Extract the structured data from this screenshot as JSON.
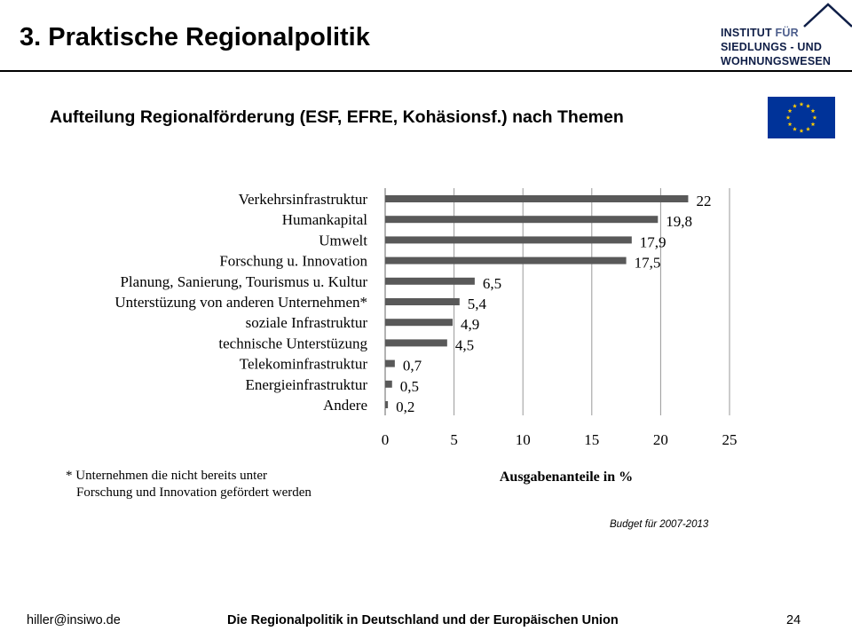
{
  "header": {
    "title": "3. Praktische Regionalpolitik",
    "logo_lines": [
      "INSTITUT",
      "FÜR",
      "SIEDLUNGS - UND",
      "WOHNUNGSWESEN"
    ]
  },
  "subtitle": "Aufteilung Regionalförderung (ESF, EFRE, Kohäsionsf.) nach Themen",
  "colors": {
    "bar": "#595959",
    "grid": "#999999",
    "logo_text": "#0f1e47",
    "flag_blue": "#003399",
    "flag_star": "#ffcc00"
  },
  "chart_data": {
    "type": "bar",
    "orientation": "horizontal",
    "categories": [
      "Verkehrsinfrastruktur",
      "Humankapital",
      "Umwelt",
      "Forschung u. Innovation",
      "Planung, Sanierung, Tourismus u. Kultur",
      "Unterstüzung von anderen Unternehmen*",
      "soziale Infrastruktur",
      "technische Unterstüzung",
      "Telekominfrastruktur",
      "Energieinfrastruktur",
      "Andere"
    ],
    "values": [
      22,
      19.8,
      17.9,
      17.5,
      6.5,
      5.4,
      4.9,
      4.5,
      0.7,
      0.5,
      0.2
    ],
    "value_labels": [
      "22",
      "19,8",
      "17,9",
      "17,5",
      "6,5",
      "5,4",
      "4,9",
      "4,5",
      "0,7",
      "0,5",
      "0,2"
    ],
    "xlim": [
      0,
      25
    ],
    "xticks": [
      0,
      5,
      10,
      15,
      20,
      25
    ],
    "xtick_labels": [
      "0",
      "5",
      "10",
      "15",
      "20",
      "25"
    ],
    "xlabel": "Ausgabenanteile  in %",
    "grid": true
  },
  "footnote": {
    "line1": "* Unternehmen die nicht bereits unter",
    "line2": "Forschung und Innovation gefördert werden"
  },
  "budget_note": "Budget für 2007-2013",
  "footer": {
    "email": "hiller@insiwo.de",
    "center": "Die Regionalpolitik in Deutschland und der Europäischen Union",
    "page": "24"
  }
}
